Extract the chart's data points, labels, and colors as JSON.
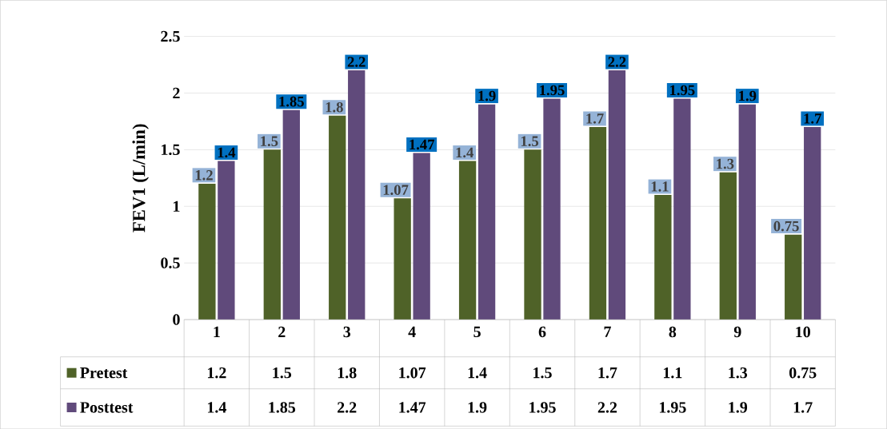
{
  "chart_data": {
    "type": "bar",
    "ylabel": "FEV1 (L/min)",
    "categories": [
      "1",
      "2",
      "3",
      "4",
      "5",
      "6",
      "7",
      "8",
      "9",
      "10"
    ],
    "series": [
      {
        "name": "Pretest",
        "color": "#4f6228",
        "values": [
          1.2,
          1.5,
          1.8,
          1.07,
          1.4,
          1.5,
          1.7,
          1.1,
          1.3,
          0.75
        ],
        "value_labels": [
          "1.2",
          "1.5",
          "1.8",
          "1.07",
          "1.4",
          "1.5",
          "1.7",
          "1.1",
          "1.3",
          "0.75"
        ]
      },
      {
        "name": "Posttest",
        "color": "#604a7b",
        "values": [
          1.4,
          1.85,
          2.2,
          1.47,
          1.9,
          1.95,
          2.2,
          1.95,
          1.9,
          1.7
        ],
        "value_labels": [
          "1.4",
          "1.85",
          "2.2",
          "1.47",
          "1.9",
          "1.95",
          "2.2",
          "1.95",
          "1.9",
          "1.7"
        ]
      }
    ],
    "ylim": [
      0,
      2.5
    ],
    "yticks": [
      0,
      0.5,
      1,
      1.5,
      2,
      2.5
    ],
    "grid": "y",
    "legend": "bottom",
    "data_labels": true
  }
}
